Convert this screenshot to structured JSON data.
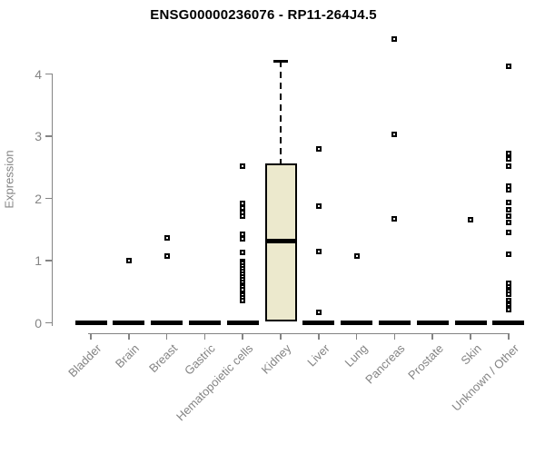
{
  "chart_data": {
    "type": "boxplot",
    "title": "ENSG00000236076 - RP11-264J4.5",
    "xlabel": "",
    "ylabel": "Expression",
    "ylim": [
      0,
      4
    ],
    "yticks": [
      0,
      1,
      2,
      3,
      4
    ],
    "grid": false,
    "legend": "none",
    "categories": [
      "Bladder",
      "Brain",
      "Breast",
      "Gastric",
      "Hematopoietic cells",
      "Kidney",
      "Liver",
      "Lung",
      "Pancreas",
      "Prostate",
      "Skin",
      "Unknown / Other"
    ],
    "boxes": [
      {
        "category": "Bladder",
        "median": 0,
        "q1": 0,
        "q3": 0,
        "whisker_low": 0,
        "whisker_high": 0,
        "outliers": []
      },
      {
        "category": "Brain",
        "median": 0,
        "q1": 0,
        "q3": 0,
        "whisker_low": 0,
        "whisker_high": 0,
        "outliers": [
          1.0
        ]
      },
      {
        "category": "Breast",
        "median": 0,
        "q1": 0,
        "q3": 0,
        "whisker_low": 0,
        "whisker_high": 0,
        "outliers": [
          1.36,
          1.07
        ]
      },
      {
        "category": "Gastric",
        "median": 0,
        "q1": 0,
        "q3": 0,
        "whisker_low": 0,
        "whisker_high": 0,
        "outliers": []
      },
      {
        "category": "Hematopoietic cells",
        "median": 0,
        "q1": 0,
        "q3": 0,
        "whisker_low": 0,
        "whisker_high": 0,
        "outliers": [
          2.52,
          1.92,
          1.85,
          1.78,
          1.71,
          1.43,
          1.35,
          1.13,
          0.99,
          0.95,
          0.91,
          0.87,
          0.82,
          0.78,
          0.74,
          0.7,
          0.65,
          0.61,
          0.57,
          0.53,
          0.48,
          0.44,
          0.4,
          0.36
        ]
      },
      {
        "category": "Kidney",
        "median": 1.32,
        "q1": 0.02,
        "q3": 2.56,
        "whisker_low": 0.02,
        "whisker_high": 4.21,
        "outliers": []
      },
      {
        "category": "Liver",
        "median": 0,
        "q1": 0,
        "q3": 0,
        "whisker_low": 0,
        "whisker_high": 0,
        "outliers": [
          2.8,
          1.88,
          1.15,
          0.17
        ]
      },
      {
        "category": "Lung",
        "median": 0,
        "q1": 0,
        "q3": 0,
        "whisker_low": 0,
        "whisker_high": 0,
        "outliers": [
          1.08
        ]
      },
      {
        "category": "Pancreas",
        "median": 0,
        "q1": 0,
        "q3": 0,
        "whisker_low": 0,
        "whisker_high": 0,
        "outliers": [
          4.56,
          3.03,
          1.67
        ]
      },
      {
        "category": "Prostate",
        "median": 0,
        "q1": 0,
        "q3": 0,
        "whisker_low": 0,
        "whisker_high": 0,
        "outliers": []
      },
      {
        "category": "Skin",
        "median": 0,
        "q1": 0,
        "q3": 0,
        "whisker_low": 0,
        "whisker_high": 0,
        "outliers": [
          1.65
        ]
      },
      {
        "category": "Unknown / Other",
        "median": 0,
        "q1": 0,
        "q3": 0,
        "whisker_low": 0,
        "whisker_high": 0,
        "outliers": [
          4.13,
          2.72,
          2.63,
          2.52,
          2.2,
          2.14,
          1.93,
          1.82,
          1.72,
          1.62,
          1.45,
          1.1,
          0.64,
          0.58,
          0.54,
          0.5,
          0.46,
          0.36,
          0.32,
          0.28,
          0.24,
          0.21
        ]
      }
    ],
    "colors": {
      "box_fill": "#ece9cd",
      "box_border": "#000000",
      "median": "#000000",
      "outlier": "#000000",
      "axis": "#848484",
      "tick_text": "#848484",
      "title_text": "#000000",
      "background": "#ffffff"
    }
  }
}
